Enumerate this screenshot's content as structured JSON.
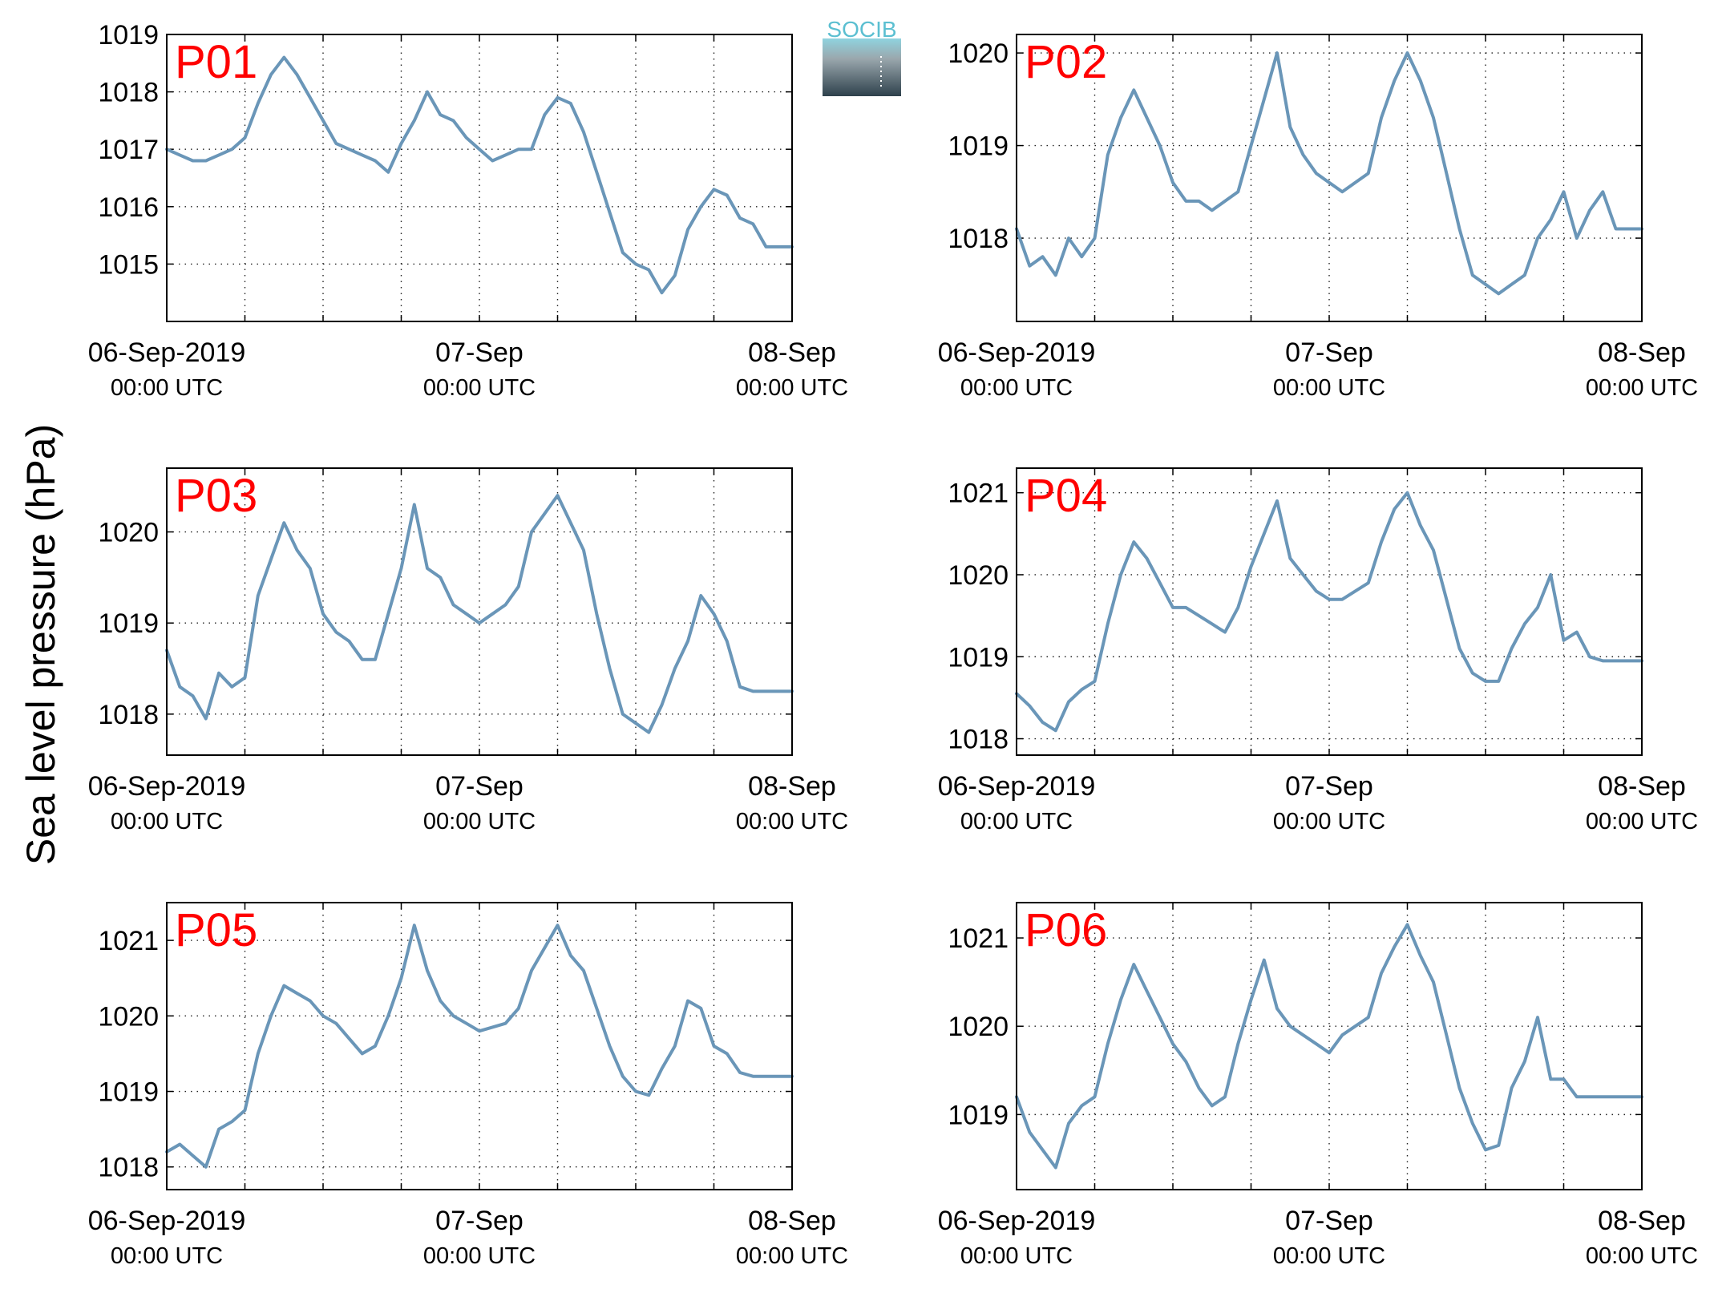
{
  "figure": {
    "ylabel": "Sea level pressure (hPa)",
    "logo_text": "SOCIB",
    "line_color": "#6a96b8",
    "panel_label_color": "#ff0000"
  },
  "chart_data": [
    {
      "type": "line",
      "label": "P01",
      "ylim": [
        1014.0,
        1019.0
      ],
      "yticks": [
        1015,
        1016,
        1017,
        1018,
        1019
      ],
      "xlim": [
        -24,
        24
      ],
      "xticks": [
        {
          "h": -24,
          "l1": "06-Sep-2019",
          "l2": "00:00 UTC"
        },
        {
          "h": 0,
          "l1": "07-Sep",
          "l2": "00:00 UTC"
        },
        {
          "h": 24,
          "l1": "08-Sep",
          "l2": "00:00 UTC"
        }
      ],
      "grid": true,
      "x": [
        -24,
        -23,
        -22,
        -21,
        -20,
        -19,
        -18,
        -17,
        -16,
        -15,
        -14,
        -13,
        -12,
        -11,
        -10,
        -9,
        -8,
        -7,
        -6,
        -5,
        -4,
        -3,
        -2,
        -1,
        0,
        1,
        2,
        3,
        4,
        5,
        6,
        7,
        8,
        9,
        10,
        11,
        12,
        13,
        14,
        15,
        16,
        17,
        18,
        19,
        20,
        21,
        22,
        23,
        24
      ],
      "y": [
        1017.0,
        1016.9,
        1016.8,
        1016.8,
        1016.9,
        1017.0,
        1017.2,
        1017.8,
        1018.3,
        1018.6,
        1018.3,
        1017.9,
        1017.5,
        1017.1,
        1017.0,
        1016.9,
        1016.8,
        1016.6,
        1017.1,
        1017.5,
        1018.0,
        1017.6,
        1017.5,
        1017.2,
        1017.0,
        1016.8,
        1016.9,
        1017.0,
        1017.0,
        1017.6,
        1017.9,
        1017.8,
        1017.3,
        1016.6,
        1015.9,
        1015.2,
        1015.0,
        1014.9,
        1014.5,
        1014.8,
        1015.6,
        1016.0,
        1016.3,
        1016.2,
        1015.8,
        1015.7,
        1015.3,
        1015.3,
        1015.3
      ]
    },
    {
      "type": "line",
      "label": "P02",
      "ylim": [
        1017.1,
        1020.2
      ],
      "yticks": [
        1018,
        1019,
        1020
      ],
      "xlim": [
        -24,
        24
      ],
      "xticks": [
        {
          "h": -24,
          "l1": "06-Sep-2019",
          "l2": "00:00 UTC"
        },
        {
          "h": 0,
          "l1": "07-Sep",
          "l2": "00:00 UTC"
        },
        {
          "h": 24,
          "l1": "08-Sep",
          "l2": "00:00 UTC"
        }
      ],
      "grid": true,
      "x": [
        -24,
        -23,
        -22,
        -21,
        -20,
        -19,
        -18,
        -17,
        -16,
        -15,
        -14,
        -13,
        -12,
        -11,
        -10,
        -9,
        -8,
        -7,
        -6,
        -5,
        -4,
        -3,
        -2,
        -1,
        0,
        1,
        2,
        3,
        4,
        5,
        6,
        7,
        8,
        9,
        10,
        11,
        12,
        13,
        14,
        15,
        16,
        17,
        18,
        19,
        20,
        21,
        22,
        23,
        24
      ],
      "y": [
        1018.1,
        1017.7,
        1017.8,
        1017.6,
        1018.0,
        1017.8,
        1018.0,
        1018.9,
        1019.3,
        1019.6,
        1019.3,
        1019.0,
        1018.6,
        1018.4,
        1018.4,
        1018.3,
        1018.4,
        1018.5,
        1019.0,
        1019.5,
        1020.0,
        1019.2,
        1018.9,
        1018.7,
        1018.6,
        1018.5,
        1018.6,
        1018.7,
        1019.3,
        1019.7,
        1020.0,
        1019.7,
        1019.3,
        1018.7,
        1018.1,
        1017.6,
        1017.5,
        1017.4,
        1017.5,
        1017.6,
        1018.0,
        1018.2,
        1018.5,
        1018.0,
        1018.3,
        1018.5,
        1018.1,
        1018.1,
        1018.1
      ]
    },
    {
      "type": "line",
      "label": "P03",
      "ylim": [
        1017.55,
        1020.7
      ],
      "yticks": [
        1018,
        1019,
        1020
      ],
      "xlim": [
        -24,
        24
      ],
      "xticks": [
        {
          "h": -24,
          "l1": "06-Sep-2019",
          "l2": "00:00 UTC"
        },
        {
          "h": 0,
          "l1": "07-Sep",
          "l2": "00:00 UTC"
        },
        {
          "h": 24,
          "l1": "08-Sep",
          "l2": "00:00 UTC"
        }
      ],
      "grid": true,
      "x": [
        -24,
        -23,
        -22,
        -21,
        -20,
        -19,
        -18,
        -17,
        -16,
        -15,
        -14,
        -13,
        -12,
        -11,
        -10,
        -9,
        -8,
        -7,
        -6,
        -5,
        -4,
        -3,
        -2,
        -1,
        0,
        1,
        2,
        3,
        4,
        5,
        6,
        7,
        8,
        9,
        10,
        11,
        12,
        13,
        14,
        15,
        16,
        17,
        18,
        19,
        20,
        21,
        22,
        23,
        24
      ],
      "y": [
        1018.7,
        1018.3,
        1018.2,
        1017.95,
        1018.45,
        1018.3,
        1018.4,
        1019.3,
        1019.7,
        1020.1,
        1019.8,
        1019.6,
        1019.1,
        1018.9,
        1018.8,
        1018.6,
        1018.6,
        1019.1,
        1019.6,
        1020.3,
        1019.6,
        1019.5,
        1019.2,
        1019.1,
        1019.0,
        1019.1,
        1019.2,
        1019.4,
        1020.0,
        1020.2,
        1020.4,
        1020.1,
        1019.8,
        1019.1,
        1018.5,
        1018.0,
        1017.9,
        1017.8,
        1018.1,
        1018.5,
        1018.8,
        1019.3,
        1019.1,
        1018.8,
        1018.3,
        1018.25,
        1018.25,
        1018.25,
        1018.25
      ]
    },
    {
      "type": "line",
      "label": "P04",
      "ylim": [
        1017.8,
        1021.3
      ],
      "yticks": [
        1018,
        1019,
        1020,
        1021
      ],
      "xlim": [
        -24,
        24
      ],
      "xticks": [
        {
          "h": -24,
          "l1": "06-Sep-2019",
          "l2": "00:00 UTC"
        },
        {
          "h": 0,
          "l1": "07-Sep",
          "l2": "00:00 UTC"
        },
        {
          "h": 24,
          "l1": "08-Sep",
          "l2": "00:00 UTC"
        }
      ],
      "grid": true,
      "x": [
        -24,
        -23,
        -22,
        -21,
        -20,
        -19,
        -18,
        -17,
        -16,
        -15,
        -14,
        -13,
        -12,
        -11,
        -10,
        -9,
        -8,
        -7,
        -6,
        -5,
        -4,
        -3,
        -2,
        -1,
        0,
        1,
        2,
        3,
        4,
        5,
        6,
        7,
        8,
        9,
        10,
        11,
        12,
        13,
        14,
        15,
        16,
        17,
        18,
        19,
        20,
        21,
        22,
        23,
        24
      ],
      "y": [
        1018.55,
        1018.4,
        1018.2,
        1018.1,
        1018.45,
        1018.6,
        1018.7,
        1019.4,
        1020.0,
        1020.4,
        1020.2,
        1019.9,
        1019.6,
        1019.6,
        1019.5,
        1019.4,
        1019.3,
        1019.6,
        1020.1,
        1020.5,
        1020.9,
        1020.2,
        1020.0,
        1019.8,
        1019.7,
        1019.7,
        1019.8,
        1019.9,
        1020.4,
        1020.8,
        1021.0,
        1020.6,
        1020.3,
        1019.7,
        1019.1,
        1018.8,
        1018.7,
        1018.7,
        1019.1,
        1019.4,
        1019.6,
        1020.0,
        1019.2,
        1019.3,
        1019.0,
        1018.95,
        1018.95,
        1018.95,
        1018.95
      ]
    },
    {
      "type": "line",
      "label": "P05",
      "ylim": [
        1017.7,
        1021.5
      ],
      "yticks": [
        1018,
        1019,
        1020,
        1021
      ],
      "xlim": [
        -24,
        24
      ],
      "xticks": [
        {
          "h": -24,
          "l1": "06-Sep-2019",
          "l2": "00:00 UTC"
        },
        {
          "h": 0,
          "l1": "07-Sep",
          "l2": "00:00 UTC"
        },
        {
          "h": 24,
          "l1": "08-Sep",
          "l2": "00:00 UTC"
        }
      ],
      "grid": true,
      "x": [
        -24,
        -23,
        -22,
        -21,
        -20,
        -19,
        -18,
        -17,
        -16,
        -15,
        -14,
        -13,
        -12,
        -11,
        -10,
        -9,
        -8,
        -7,
        -6,
        -5,
        -4,
        -3,
        -2,
        -1,
        0,
        1,
        2,
        3,
        4,
        5,
        6,
        7,
        8,
        9,
        10,
        11,
        12,
        13,
        14,
        15,
        16,
        17,
        18,
        19,
        20,
        21,
        22,
        23,
        24
      ],
      "y": [
        1018.2,
        1018.3,
        1018.15,
        1018.0,
        1018.5,
        1018.6,
        1018.75,
        1019.5,
        1020.0,
        1020.4,
        1020.3,
        1020.2,
        1020.0,
        1019.9,
        1019.7,
        1019.5,
        1019.6,
        1020.0,
        1020.5,
        1021.2,
        1020.6,
        1020.2,
        1020.0,
        1019.9,
        1019.8,
        1019.85,
        1019.9,
        1020.1,
        1020.6,
        1020.9,
        1021.2,
        1020.8,
        1020.6,
        1020.1,
        1019.6,
        1019.2,
        1019.0,
        1018.95,
        1019.3,
        1019.6,
        1020.2,
        1020.1,
        1019.6,
        1019.5,
        1019.25,
        1019.2,
        1019.2,
        1019.2,
        1019.2
      ]
    },
    {
      "type": "line",
      "label": "P06",
      "ylim": [
        1018.15,
        1021.4
      ],
      "yticks": [
        1019,
        1020,
        1021
      ],
      "xlim": [
        -24,
        24
      ],
      "xticks": [
        {
          "h": -24,
          "l1": "06-Sep-2019",
          "l2": "00:00 UTC"
        },
        {
          "h": 0,
          "l1": "07-Sep",
          "l2": "00:00 UTC"
        },
        {
          "h": 24,
          "l1": "08-Sep",
          "l2": "00:00 UTC"
        }
      ],
      "grid": true,
      "x": [
        -24,
        -23,
        -22,
        -21,
        -20,
        -19,
        -18,
        -17,
        -16,
        -15,
        -14,
        -13,
        -12,
        -11,
        -10,
        -9,
        -8,
        -7,
        -6,
        -5,
        -4,
        -3,
        -2,
        -1,
        0,
        1,
        2,
        3,
        4,
        5,
        6,
        7,
        8,
        9,
        10,
        11,
        12,
        13,
        14,
        15,
        16,
        17,
        18,
        19,
        20,
        21,
        22,
        23,
        24
      ],
      "y": [
        1019.2,
        1018.8,
        1018.6,
        1018.4,
        1018.9,
        1019.1,
        1019.2,
        1019.8,
        1020.3,
        1020.7,
        1020.4,
        1020.1,
        1019.8,
        1019.6,
        1019.3,
        1019.1,
        1019.2,
        1019.8,
        1020.3,
        1020.75,
        1020.2,
        1020.0,
        1019.9,
        1019.8,
        1019.7,
        1019.9,
        1020.0,
        1020.1,
        1020.6,
        1020.9,
        1021.15,
        1020.8,
        1020.5,
        1019.9,
        1019.3,
        1018.9,
        1018.6,
        1018.65,
        1019.3,
        1019.6,
        1020.1,
        1019.4,
        1019.4,
        1019.2,
        1019.2,
        1019.2,
        1019.2,
        1019.2,
        1019.2
      ]
    }
  ]
}
